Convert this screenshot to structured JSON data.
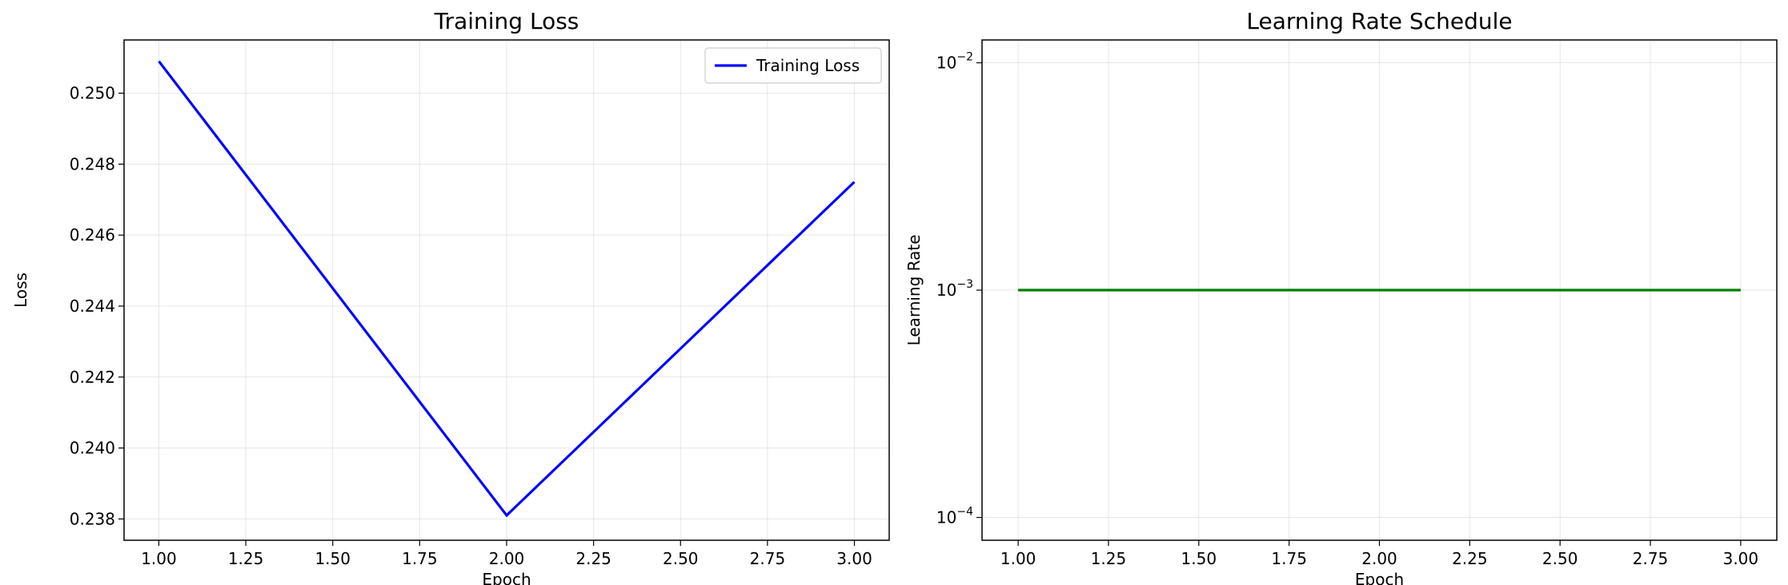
{
  "chart_data": [
    {
      "type": "line",
      "title": "Training Loss",
      "xlabel": "Epoch",
      "ylabel": "Loss",
      "xlim": [
        0.9,
        3.1
      ],
      "ylim": [
        0.2374,
        0.2515
      ],
      "xticks": [
        1.0,
        1.25,
        1.5,
        1.75,
        2.0,
        2.25,
        2.5,
        2.75,
        3.0
      ],
      "xtick_labels": [
        "1.00",
        "1.25",
        "1.50",
        "1.75",
        "2.00",
        "2.25",
        "2.50",
        "2.75",
        "3.00"
      ],
      "yticks": [
        0.238,
        0.24,
        0.242,
        0.244,
        0.246,
        0.248,
        0.25
      ],
      "ytick_labels": [
        "0.238",
        "0.240",
        "0.242",
        "0.244",
        "0.246",
        "0.248",
        "0.250"
      ],
      "grid": true,
      "legend": "top-right",
      "series": [
        {
          "name": "Training Loss",
          "color": "#0000ff",
          "x": [
            1,
            2,
            3
          ],
          "values": [
            0.2509,
            0.2381,
            0.2475
          ]
        }
      ]
    },
    {
      "type": "line",
      "title": "Learning Rate Schedule",
      "xlabel": "Epoch",
      "ylabel": "Learning Rate",
      "yscale": "log",
      "xlim": [
        0.9,
        3.1
      ],
      "ylim": [
        7.94e-05,
        0.0126
      ],
      "xticks": [
        1.0,
        1.25,
        1.5,
        1.75,
        2.0,
        2.25,
        2.5,
        2.75,
        3.0
      ],
      "xtick_labels": [
        "1.00",
        "1.25",
        "1.50",
        "1.75",
        "2.00",
        "2.25",
        "2.50",
        "2.75",
        "3.00"
      ],
      "yticks": [
        0.0001,
        0.001,
        0.01
      ],
      "ytick_labels": [
        {
          "base": "10",
          "exp": "−4"
        },
        {
          "base": "10",
          "exp": "−3"
        },
        {
          "base": "10",
          "exp": "−2"
        }
      ],
      "grid": true,
      "series": [
        {
          "color": "#008000",
          "x": [
            1,
            2,
            3
          ],
          "values": [
            0.001,
            0.001,
            0.001
          ]
        }
      ]
    }
  ]
}
